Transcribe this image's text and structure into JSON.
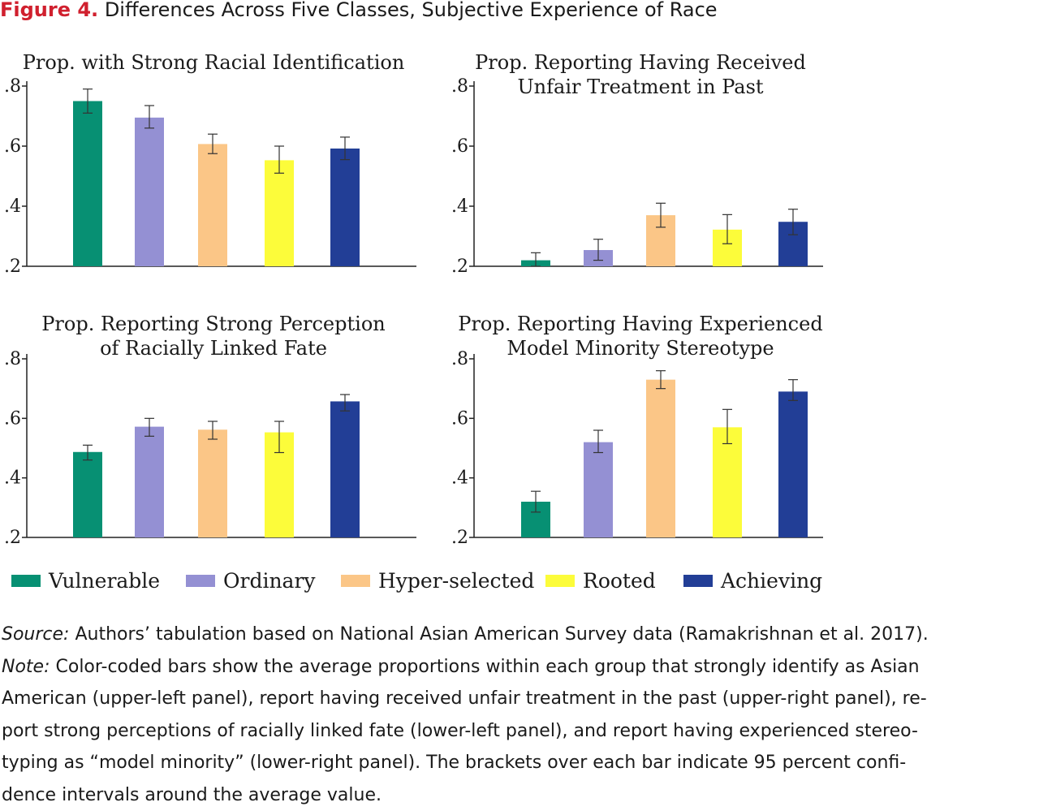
{
  "figure": {
    "label": "Figure 4.",
    "title": "Differences Across Five Classes, Subjective Experience of Race"
  },
  "classes": [
    "Vulnerable",
    "Ordinary",
    "Hyper-selected",
    "Rooted",
    "Achieving"
  ],
  "colors": {
    "Vulnerable": "#079073",
    "Ordinary": "#9490d3",
    "Hyper-selected": "#fbc687",
    "Rooted": "#fcfc3a",
    "Achieving": "#223e96",
    "axis": "#222222",
    "title_accent": "#d0202e"
  },
  "legend": {
    "placement": "bottom",
    "items": [
      "Vulnerable",
      "Ordinary",
      "Hyper-selected",
      "Rooted",
      "Achieving"
    ]
  },
  "chart_data": [
    {
      "type": "bar",
      "panel": "upper-left",
      "title": [
        "Prop. with Strong Racial Identification"
      ],
      "categories": [
        "Vulnerable",
        "Ordinary",
        "Hyper-selected",
        "Rooted",
        "Achieving"
      ],
      "values": [
        0.75,
        0.695,
        0.607,
        0.553,
        0.592
      ],
      "ci_low": [
        0.71,
        0.66,
        0.575,
        0.51,
        0.555
      ],
      "ci_high": [
        0.79,
        0.735,
        0.64,
        0.6,
        0.63
      ],
      "yticks": [
        0.2,
        0.4,
        0.6,
        0.8
      ],
      "yticklabels": [
        ".2",
        ".4",
        ".6",
        ".8"
      ],
      "ylim": [
        0.2,
        0.8
      ],
      "grid": false
    },
    {
      "type": "bar",
      "panel": "upper-right",
      "title": [
        "Prop. Reporting Having Received",
        "Unfair Treatment in Past"
      ],
      "categories": [
        "Vulnerable",
        "Ordinary",
        "Hyper-selected",
        "Rooted",
        "Achieving"
      ],
      "values": [
        0.22,
        0.254,
        0.37,
        0.322,
        0.348
      ],
      "ci_low": [
        0.2,
        0.22,
        0.33,
        0.275,
        0.305
      ],
      "ci_high": [
        0.245,
        0.29,
        0.41,
        0.372,
        0.39
      ],
      "yticks": [
        0.2,
        0.4,
        0.6,
        0.8
      ],
      "yticklabels": [
        ".2",
        ".4",
        ".6",
        ".8"
      ],
      "ylim": [
        0.2,
        0.8
      ],
      "grid": false
    },
    {
      "type": "bar",
      "panel": "lower-left",
      "title": [
        "Prop. Reporting Strong Perception",
        "of Racially Linked Fate"
      ],
      "categories": [
        "Vulnerable",
        "Ordinary",
        "Hyper-selected",
        "Rooted",
        "Achieving"
      ],
      "values": [
        0.487,
        0.572,
        0.562,
        0.553,
        0.657
      ],
      "ci_low": [
        0.46,
        0.54,
        0.53,
        0.485,
        0.625
      ],
      "ci_high": [
        0.51,
        0.6,
        0.59,
        0.59,
        0.68
      ],
      "yticks": [
        0.2,
        0.4,
        0.6,
        0.8
      ],
      "yticklabels": [
        ".2",
        ".4",
        ".6",
        ".8"
      ],
      "ylim": [
        0.2,
        0.8
      ],
      "grid": false
    },
    {
      "type": "bar",
      "panel": "lower-right",
      "title": [
        "Prop. Reporting Having Experienced",
        "Model Minority Stereotype"
      ],
      "categories": [
        "Vulnerable",
        "Ordinary",
        "Hyper-selected",
        "Rooted",
        "Achieving"
      ],
      "values": [
        0.32,
        0.52,
        0.73,
        0.57,
        0.69
      ],
      "ci_low": [
        0.285,
        0.485,
        0.7,
        0.515,
        0.66
      ],
      "ci_high": [
        0.355,
        0.56,
        0.76,
        0.63,
        0.73
      ],
      "yticks": [
        0.2,
        0.4,
        0.6,
        0.8
      ],
      "yticklabels": [
        ".2",
        ".4",
        ".6",
        ".8"
      ],
      "ylim": [
        0.2,
        0.8
      ],
      "grid": false
    }
  ],
  "caption": {
    "source_label": "Source:",
    "source_text": " Authors’ tabulation based on National Asian American Survey data (Ramakrishnan et al. 2017).",
    "note_label": "Note:",
    "note_line1": " Color-coded bars show the average proportions within each group that strongly identify as Asian",
    "lines": [
      "American (upper-left panel), report having received unfair treatment in the past (upper-right panel), re-",
      "port strong perceptions of racially linked fate (lower-left panel), and report having experienced stereo-",
      "typing as “model minority” (lower-right panel). The brackets over each bar indicate 95 percent confi-",
      "dence intervals around the average value."
    ]
  }
}
